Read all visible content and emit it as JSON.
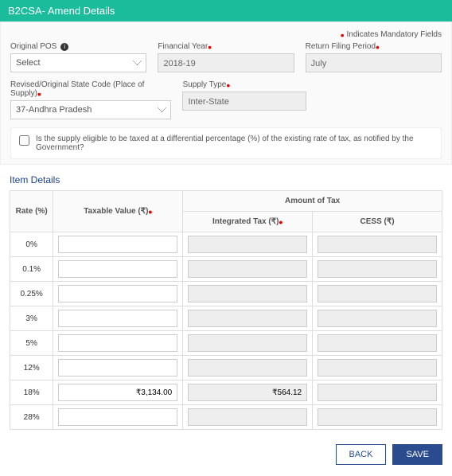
{
  "header": {
    "title": "B2CSA- Amend Details"
  },
  "notes": {
    "mandatory": "Indicates Mandatory Fields"
  },
  "form": {
    "originalPos": {
      "label": "Original POS",
      "value": "Select"
    },
    "financialYear": {
      "label": "Financial Year",
      "value": "2018-19"
    },
    "returnFilingPeriod": {
      "label": "Return Filing Period",
      "value": "July"
    },
    "stateCode": {
      "label": "Revised/Original State Code (Place of Supply)",
      "value": "37-Andhra Pradesh"
    },
    "supplyType": {
      "label": "Supply Type",
      "value": "Inter-State"
    },
    "checkboxText": "Is the supply eligible to be taxed at a differential percentage (%) of the existing rate of tax, as notified by the Government?"
  },
  "itemsSection": {
    "title": "Item Details",
    "columns": {
      "rate": "Rate (%)",
      "taxable": "Taxable Value (₹)",
      "amountOfTax": "Amount of Tax",
      "integrated": "Integrated Tax (₹)",
      "cess": "CESS (₹)"
    },
    "rows": [
      {
        "rate": "0%",
        "taxable": "",
        "integrated": "",
        "cess": ""
      },
      {
        "rate": "0.1%",
        "taxable": "",
        "integrated": "",
        "cess": ""
      },
      {
        "rate": "0.25%",
        "taxable": "",
        "integrated": "",
        "cess": ""
      },
      {
        "rate": "3%",
        "taxable": "",
        "integrated": "",
        "cess": ""
      },
      {
        "rate": "5%",
        "taxable": "",
        "integrated": "",
        "cess": ""
      },
      {
        "rate": "12%",
        "taxable": "",
        "integrated": "",
        "cess": ""
      },
      {
        "rate": "18%",
        "taxable": "₹3,134.00",
        "integrated": "₹564.12",
        "cess": ""
      },
      {
        "rate": "28%",
        "taxable": "",
        "integrated": "",
        "cess": ""
      }
    ]
  },
  "buttons": {
    "back": "BACK",
    "save": "SAVE"
  },
  "colors": {
    "headerBg": "#1abc9c",
    "primary": "#2a4b8d",
    "mandatory": "#e00"
  }
}
